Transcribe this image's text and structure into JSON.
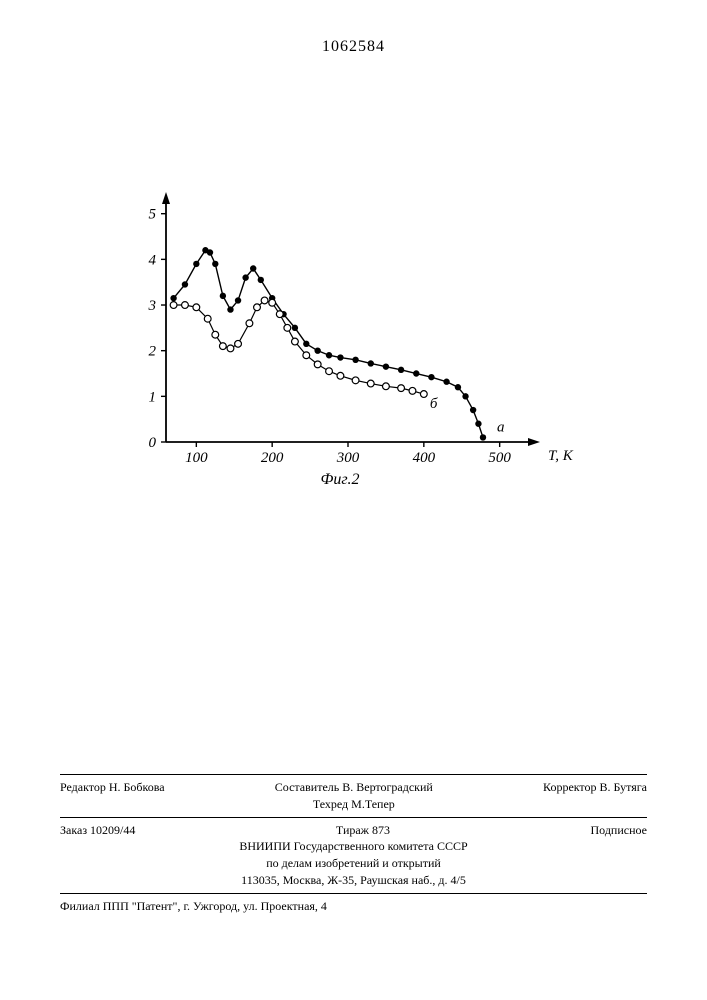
{
  "page_number": "1062584",
  "chart": {
    "type": "line",
    "caption": "Фиг.2",
    "xlabel": "T, K",
    "x_ticks": [
      "100",
      "200",
      "300",
      "400",
      "500"
    ],
    "y_ticks": [
      "0",
      "1",
      "2",
      "3",
      "4",
      "5"
    ],
    "xlim": [
      60,
      540
    ],
    "ylim": [
      0,
      5.3
    ],
    "axis_color": "#000000",
    "background_color": "#ffffff",
    "font_size_ticks": 15,
    "font_size_caption": 16,
    "font_size_xlabel": 15,
    "series": [
      {
        "label": "а",
        "marker": "filled-circle",
        "marker_size": 3.2,
        "color": "#000000",
        "line_width": 1.4,
        "points": [
          [
            70,
            3.15
          ],
          [
            85,
            3.45
          ],
          [
            100,
            3.9
          ],
          [
            112,
            4.2
          ],
          [
            118,
            4.15
          ],
          [
            125,
            3.9
          ],
          [
            135,
            3.2
          ],
          [
            145,
            2.9
          ],
          [
            155,
            3.1
          ],
          [
            165,
            3.6
          ],
          [
            175,
            3.8
          ],
          [
            185,
            3.55
          ],
          [
            200,
            3.15
          ],
          [
            215,
            2.8
          ],
          [
            230,
            2.5
          ],
          [
            245,
            2.15
          ],
          [
            260,
            2.0
          ],
          [
            275,
            1.9
          ],
          [
            290,
            1.85
          ],
          [
            310,
            1.8
          ],
          [
            330,
            1.72
          ],
          [
            350,
            1.65
          ],
          [
            370,
            1.58
          ],
          [
            390,
            1.5
          ],
          [
            410,
            1.42
          ],
          [
            430,
            1.32
          ],
          [
            445,
            1.2
          ],
          [
            455,
            1.0
          ],
          [
            465,
            0.7
          ],
          [
            472,
            0.4
          ],
          [
            478,
            0.1
          ]
        ]
      },
      {
        "label": "б",
        "marker": "open-circle",
        "marker_size": 3.4,
        "color": "#000000",
        "line_width": 1.2,
        "points": [
          [
            70,
            3.0
          ],
          [
            85,
            3.0
          ],
          [
            100,
            2.95
          ],
          [
            115,
            2.7
          ],
          [
            125,
            2.35
          ],
          [
            135,
            2.1
          ],
          [
            145,
            2.05
          ],
          [
            155,
            2.15
          ],
          [
            170,
            2.6
          ],
          [
            180,
            2.95
          ],
          [
            190,
            3.1
          ],
          [
            200,
            3.05
          ],
          [
            210,
            2.8
          ],
          [
            220,
            2.5
          ],
          [
            230,
            2.2
          ],
          [
            245,
            1.9
          ],
          [
            260,
            1.7
          ],
          [
            275,
            1.55
          ],
          [
            290,
            1.45
          ],
          [
            310,
            1.35
          ],
          [
            330,
            1.28
          ],
          [
            350,
            1.22
          ],
          [
            370,
            1.18
          ],
          [
            385,
            1.12
          ],
          [
            400,
            1.05
          ]
        ]
      }
    ]
  },
  "footer": {
    "row1": {
      "redactor_label": "Редактор",
      "redactor_name": "Н. Бобкова",
      "compiler_label": "Составитель",
      "compiler_name": "В. Вертоградский",
      "technician_label": "Техред",
      "technician_name": "М.Тепер",
      "corrector_label": "Корректор",
      "corrector_name": "В. Бутяга"
    },
    "row2": {
      "order": "Заказ 10209/44",
      "circulation": "Тираж 873",
      "subscription": "Подписное"
    },
    "org1": "ВНИИПИ Государственного комитета СССР",
    "org2": "по делам изобретений и открытий",
    "address1": "113035, Москва, Ж-35, Раушская наб., д. 4/5",
    "address2": "Филиал ППП \"Патент\", г. Ужгород, ул. Проектная, 4"
  }
}
